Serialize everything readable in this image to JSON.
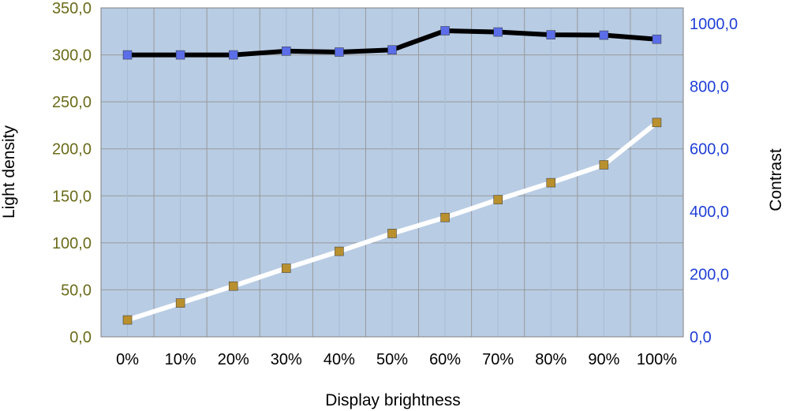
{
  "chart_data": {
    "type": "line",
    "xlabel": "Display brightness",
    "ylabel_left": "Light density",
    "ylabel_right": "Contrast",
    "categories": [
      "0%",
      "10%",
      "20%",
      "30%",
      "40%",
      "50%",
      "60%",
      "70%",
      "80%",
      "90%",
      "100%"
    ],
    "y_left_range": [
      0,
      350
    ],
    "y_left_ticks": [
      "0,0",
      "50,0",
      "100,0",
      "150,0",
      "200,0",
      "250,0",
      "300,0",
      "350,0"
    ],
    "y_right_range": [
      0,
      1050
    ],
    "y_right_ticks": [
      "0,0",
      "200,0",
      "400,0",
      "600,0",
      "800,0",
      "1000,0"
    ],
    "grid": true,
    "series": [
      {
        "axis": "right",
        "values": [
          900,
          900,
          900,
          912,
          909,
          916,
          977,
          973,
          964,
          963,
          950
        ],
        "line_color": "#000000",
        "marker_color": "#5b6ee8"
      },
      {
        "axis": "left",
        "values": [
          18,
          36,
          54,
          73,
          91,
          110,
          127,
          146,
          164,
          183,
          228
        ],
        "line_color": "#ffffff",
        "marker_color": "#b8902e"
      }
    ],
    "colors": {
      "plot_background": "#b8cce4",
      "grid": "#999999",
      "left_tick": "#6b6b1a",
      "right_tick": "#1f3fd6"
    }
  }
}
